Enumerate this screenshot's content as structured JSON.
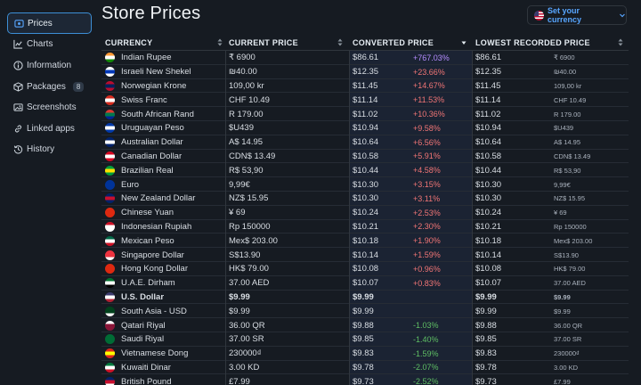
{
  "sidebar": {
    "items": [
      {
        "label": "Prices",
        "icon": "dollar-icon",
        "active": true
      },
      {
        "label": "Charts",
        "icon": "chart-icon"
      },
      {
        "label": "Information",
        "icon": "info-icon"
      },
      {
        "label": "Packages",
        "icon": "package-icon",
        "badge": "8"
      },
      {
        "label": "Screenshots",
        "icon": "image-icon"
      },
      {
        "label": "Linked apps",
        "icon": "link-icon"
      },
      {
        "label": "History",
        "icon": "history-icon"
      }
    ]
  },
  "header": {
    "title": "Store Prices",
    "currency_button": "Set your currency"
  },
  "table": {
    "columns": [
      "CURRENCY",
      "CURRENT PRICE",
      "CONVERTED PRICE",
      "LOWEST RECORDED PRICE"
    ],
    "rows": [
      {
        "name": "Indian Rupee",
        "flag": [
          "#ff9933",
          "#ffffff",
          "#138808"
        ],
        "current": "₹ 6900",
        "converted": "$86.61",
        "pct": "+767.03%",
        "pct_class": "up-big",
        "lowest": "$86.61",
        "lowest_cur": "₹ 6900"
      },
      {
        "name": "Israeli New Shekel",
        "flag": [
          "#ffffff",
          "#0038b8",
          "#ffffff"
        ],
        "current": "₪40.00",
        "converted": "$12.35",
        "pct": "+23.66%",
        "pct_class": "up",
        "lowest": "$12.35",
        "lowest_cur": "₪40.00"
      },
      {
        "name": "Norwegian Krone",
        "flag": [
          "#ba0c2f",
          "#00205b",
          "#ba0c2f"
        ],
        "current": "109,00 kr",
        "converted": "$11.45",
        "pct": "+14.67%",
        "pct_class": "up",
        "lowest": "$11.45",
        "lowest_cur": "109,00 kr"
      },
      {
        "name": "Swiss Franc",
        "flag": [
          "#d52b1e",
          "#ffffff",
          "#d52b1e"
        ],
        "current": "CHF 10.49",
        "converted": "$11.14",
        "pct": "+11.53%",
        "pct_class": "up",
        "lowest": "$11.14",
        "lowest_cur": "CHF 10.49"
      },
      {
        "name": "South African Rand",
        "flag": [
          "#de3831",
          "#007a4d",
          "#002395"
        ],
        "current": "R 179.00",
        "converted": "$11.02",
        "pct": "+10.36%",
        "pct_class": "up",
        "lowest": "$11.02",
        "lowest_cur": "R 179.00"
      },
      {
        "name": "Uruguayan Peso",
        "flag": [
          "#0038a8",
          "#ffffff",
          "#0038a8"
        ],
        "current": "$U439",
        "converted": "$10.94",
        "pct": "+9.58%",
        "pct_class": "up",
        "lowest": "$10.94",
        "lowest_cur": "$U439"
      },
      {
        "name": "Australian Dollar",
        "flag": [
          "#012169",
          "#ffffff",
          "#012169"
        ],
        "current": "A$ 14.95",
        "converted": "$10.64",
        "pct": "+6.56%",
        "pct_class": "up",
        "lowest": "$10.64",
        "lowest_cur": "A$ 14.95"
      },
      {
        "name": "Canadian Dollar",
        "flag": [
          "#d80621",
          "#ffffff",
          "#d80621"
        ],
        "current": "CDN$ 13.49",
        "converted": "$10.58",
        "pct": "+5.91%",
        "pct_class": "up",
        "lowest": "$10.58",
        "lowest_cur": "CDN$ 13.49"
      },
      {
        "name": "Brazilian Real",
        "flag": [
          "#009c3b",
          "#ffdf00",
          "#009c3b"
        ],
        "current": "R$ 53,90",
        "converted": "$10.44",
        "pct": "+4.58%",
        "pct_class": "up",
        "lowest": "$10.44",
        "lowest_cur": "R$ 53,90"
      },
      {
        "name": "Euro",
        "flag": [
          "#003399",
          "#003399",
          "#003399"
        ],
        "current": "9,99€",
        "converted": "$10.30",
        "pct": "+3.15%",
        "pct_class": "up",
        "lowest": "$10.30",
        "lowest_cur": "9,99€"
      },
      {
        "name": "New Zealand Dollar",
        "flag": [
          "#012169",
          "#c8102e",
          "#012169"
        ],
        "current": "NZ$ 15.95",
        "converted": "$10.30",
        "pct": "+3.11%",
        "pct_class": "up",
        "lowest": "$10.30",
        "lowest_cur": "NZ$ 15.95"
      },
      {
        "name": "Chinese Yuan",
        "flag": [
          "#de2910",
          "#de2910",
          "#de2910"
        ],
        "current": "¥ 69",
        "converted": "$10.24",
        "pct": "+2.53%",
        "pct_class": "up",
        "lowest": "$10.24",
        "lowest_cur": "¥ 69"
      },
      {
        "name": "Indonesian Rupiah",
        "flag": [
          "#ce1126",
          "#ffffff",
          "#ffffff"
        ],
        "current": "Rp 150000",
        "converted": "$10.21",
        "pct": "+2.30%",
        "pct_class": "up",
        "lowest": "$10.21",
        "lowest_cur": "Rp 150000"
      },
      {
        "name": "Mexican Peso",
        "flag": [
          "#006847",
          "#ffffff",
          "#ce1126"
        ],
        "current": "Mex$ 203.00",
        "converted": "$10.18",
        "pct": "+1.90%",
        "pct_class": "up",
        "lowest": "$10.18",
        "lowest_cur": "Mex$ 203.00"
      },
      {
        "name": "Singapore Dollar",
        "flag": [
          "#ef3340",
          "#ef3340",
          "#ffffff"
        ],
        "current": "S$13.90",
        "converted": "$10.14",
        "pct": "+1.59%",
        "pct_class": "up",
        "lowest": "$10.14",
        "lowest_cur": "S$13.90"
      },
      {
        "name": "Hong Kong Dollar",
        "flag": [
          "#de2910",
          "#de2910",
          "#de2910"
        ],
        "current": "HK$ 79.00",
        "converted": "$10.08",
        "pct": "+0.96%",
        "pct_class": "up",
        "lowest": "$10.08",
        "lowest_cur": "HK$ 79.00"
      },
      {
        "name": "U.A.E. Dirham",
        "flag": [
          "#00732f",
          "#ffffff",
          "#000000"
        ],
        "current": "37.00 AED",
        "converted": "$10.07",
        "pct": "+0.83%",
        "pct_class": "up",
        "lowest": "$10.07",
        "lowest_cur": "37.00 AED"
      },
      {
        "name": "U.S. Dollar",
        "flag": [
          "#3c3b6e",
          "#ffffff",
          "#b22234"
        ],
        "current": "$9.99",
        "converted": "$9.99",
        "pct": "",
        "pct_class": "",
        "lowest": "$9.99",
        "lowest_cur": "$9.99",
        "highlight": true
      },
      {
        "name": "South Asia - USD",
        "flag": [
          "#01411c",
          "#01411c",
          "#ffffff"
        ],
        "current": "$9.99",
        "converted": "$9.99",
        "pct": "",
        "pct_class": "",
        "lowest": "$9.99",
        "lowest_cur": "$9.99"
      },
      {
        "name": "Qatari Riyal",
        "flag": [
          "#ffffff",
          "#8a1538",
          "#8a1538"
        ],
        "current": "36.00 QR",
        "converted": "$9.88",
        "pct": "-1.03%",
        "pct_class": "down",
        "lowest": "$9.88",
        "lowest_cur": "36.00 QR"
      },
      {
        "name": "Saudi Riyal",
        "flag": [
          "#006c35",
          "#006c35",
          "#006c35"
        ],
        "current": "37.00 SR",
        "converted": "$9.85",
        "pct": "-1.40%",
        "pct_class": "down",
        "lowest": "$9.85",
        "lowest_cur": "37.00 SR"
      },
      {
        "name": "Vietnamese Dong",
        "flag": [
          "#da251d",
          "#ffff00",
          "#da251d"
        ],
        "current": "230000₫",
        "converted": "$9.83",
        "pct": "-1.59%",
        "pct_class": "down",
        "lowest": "$9.83",
        "lowest_cur": "230000₫"
      },
      {
        "name": "Kuwaiti Dinar",
        "flag": [
          "#007a3d",
          "#ffffff",
          "#ce1126"
        ],
        "current": "3.00 KD",
        "converted": "$9.78",
        "pct": "-2.07%",
        "pct_class": "down",
        "lowest": "$9.78",
        "lowest_cur": "3.00 KD"
      },
      {
        "name": "British Pound",
        "flag": [
          "#012169",
          "#c8102e",
          "#ffffff"
        ],
        "current": "£7.99",
        "converted": "$9.73",
        "pct": "-2.52%",
        "pct_class": "down",
        "lowest": "$9.73",
        "lowest_cur": "£7.99"
      }
    ]
  },
  "colors": {
    "accent": "#58a6ff",
    "increase": "#f07575",
    "increase_large": "#b58cff",
    "decrease": "#5fbf64",
    "background": "#161b22"
  }
}
